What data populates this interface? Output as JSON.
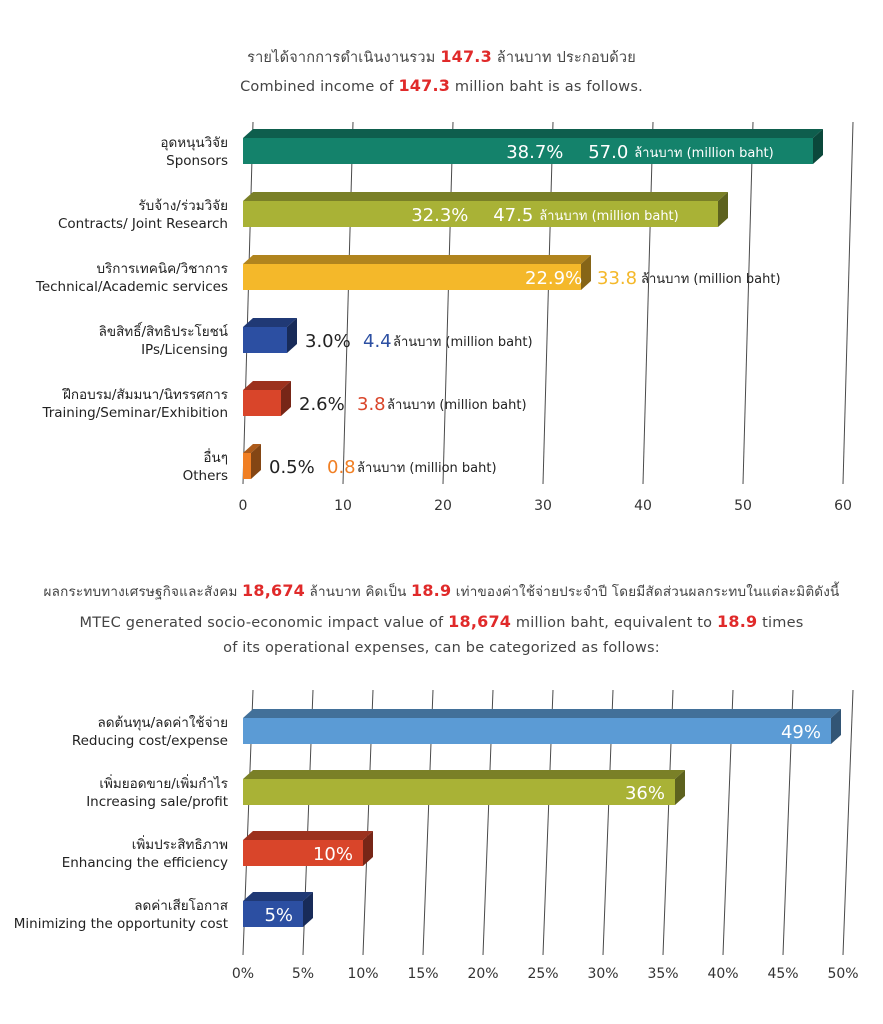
{
  "income_chart": {
    "caption_th": {
      "before": "รายได้จากการดำเนินงานรวม ",
      "value": "147.3",
      "after": " ล้านบาท ประกอบด้วย"
    },
    "caption_en": {
      "before": "Combined income of ",
      "value": "147.3",
      "after": " million baht is as follows."
    },
    "unit_label": "ล้านบาท (million baht)"
  },
  "impact_chart": {
    "caption_th": {
      "p1": "ผลกระทบทางเศรษฐกิจและสังคม ",
      "v1": "18,674",
      "p2": " ล้านบาท คิดเป็น ",
      "v2": "18.9",
      "p3": " เท่าของค่าใช้จ่ายประจำปี โดยมีสัดส่วนผลกระทบในแต่ละมิติดังนี้"
    },
    "caption_en1": {
      "p1": "MTEC generated socio-economic impact value of ",
      "v1": "18,674",
      "p2": " million baht, equivalent to ",
      "v2": "18.9",
      "p3": " times"
    },
    "caption_en2": "of its operational expenses, can be categorized as follows:"
  },
  "chart_data": [
    {
      "type": "bar",
      "orientation": "horizontal",
      "categories": [
        {
          "th": "อุดหนุนวิจัย",
          "en": "Sponsors"
        },
        {
          "th": "รับจ้าง/ร่วมวิจัย",
          "en": "Contracts/ Joint Research"
        },
        {
          "th": "บริการเทคนิค/วิชาการ",
          "en": "Technical/Academic services"
        },
        {
          "th": "ลิขสิทธิ์/สิทธิประโยชน์",
          "en": "IPs/Licensing"
        },
        {
          "th": "ฝึกอบรม/สัมมนา/นิทรรศการ",
          "en": "Training/Seminar/Exhibition"
        },
        {
          "th": "อื่นๆ",
          "en": "Others"
        }
      ],
      "values": [
        57.0,
        47.5,
        33.8,
        4.4,
        3.8,
        0.8
      ],
      "percent_labels": [
        "38.7%",
        "32.3%",
        "22.9%",
        "3.0%",
        "2.6%",
        "0.5%"
      ],
      "value_labels": [
        "57.0",
        "47.5",
        "33.8",
        "4.4",
        "3.8",
        "0.8"
      ],
      "colors": [
        "#14826b",
        "#a9b236",
        "#f4b82a",
        "#2c4fa2",
        "#d9452a",
        "#f07f24"
      ],
      "value_label_colors": [
        "#ffffff",
        "#ffffff",
        "#f4b82a",
        "#2c4fa2",
        "#d9452a",
        "#f07f24"
      ],
      "xlim": [
        0,
        60
      ],
      "xticks": [
        "0",
        "10",
        "20",
        "30",
        "40",
        "50",
        "60"
      ]
    },
    {
      "type": "bar",
      "orientation": "horizontal",
      "categories": [
        {
          "th": "ลดต้นทุน/ลดค่าใช้จ่าย",
          "en": "Reducing cost/expense"
        },
        {
          "th": "เพิ่มยอดขาย/เพิ่มกำไร",
          "en": "Increasing sale/profit"
        },
        {
          "th": "เพิ่มประสิทธิภาพ",
          "en": "Enhancing the efficiency"
        },
        {
          "th": "ลดค่าเสียโอกาส",
          "en": "Minimizing the opportunity cost"
        }
      ],
      "values": [
        49,
        36,
        10,
        5
      ],
      "value_labels": [
        "49%",
        "36%",
        "10%",
        "5%"
      ],
      "colors": [
        "#5b9bd5",
        "#a9b236",
        "#d9452a",
        "#2c4fa2"
      ],
      "xlim": [
        0,
        50
      ],
      "xticks": [
        "0%",
        "5%",
        "10%",
        "15%",
        "20%",
        "25%",
        "30%",
        "35%",
        "40%",
        "45%",
        "50%"
      ]
    }
  ]
}
